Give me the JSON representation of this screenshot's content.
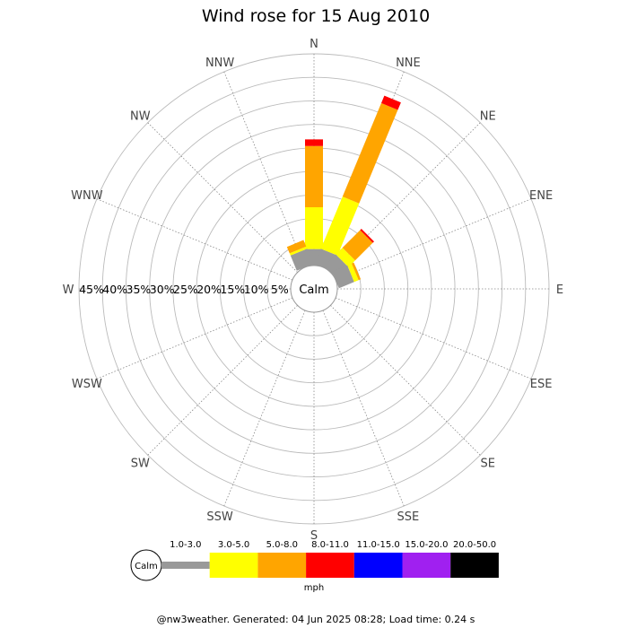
{
  "chart_data": {
    "type": "wind-rose",
    "title": "Wind rose for 15 Aug 2010",
    "directions": [
      "N",
      "NNE",
      "NE",
      "ENE",
      "E",
      "ESE",
      "SE",
      "SSE",
      "S",
      "SSW",
      "SW",
      "WSW",
      "W",
      "WNW",
      "NW",
      "NNW"
    ],
    "ring_labels": [
      "5%",
      "10%",
      "15%",
      "20%",
      "25%",
      "30%",
      "35%",
      "40%",
      "45%"
    ],
    "ring_values": [
      5,
      10,
      15,
      20,
      25,
      30,
      35,
      40,
      45
    ],
    "rmax": 45,
    "calm_label": "Calm",
    "speed_bins": [
      {
        "label": "1.0-3.0",
        "color": "#999999"
      },
      {
        "label": "3.0-5.0",
        "color": "#ffff00"
      },
      {
        "label": "5.0-8.0",
        "color": "#ffa500"
      },
      {
        "label": "8.0-11.0",
        "color": "#ff0000"
      },
      {
        "label": "11.0-15.0",
        "color": "#0000ff"
      },
      {
        "label": "15.0-20.0",
        "color": "#a020f0"
      },
      {
        "label": "20.0-50.0",
        "color": "#000000"
      }
    ],
    "unit_label": "mph",
    "series": [
      {
        "direction": "N",
        "cumulative": [
          3.5,
          12.4,
          25.4,
          26.8
        ]
      },
      {
        "direction": "NNE",
        "cumulative": [
          3.5,
          15.5,
          37.0,
          38.7
        ]
      },
      {
        "direction": "NE",
        "cumulative": [
          3.5,
          5.5,
          10.8,
          11.2
        ]
      },
      {
        "direction": "ENE",
        "cumulative": [
          3.5,
          4.5,
          5.0
        ]
      },
      {
        "direction": "NNW",
        "cumulative": [
          3.5,
          4.0,
          5.5
        ]
      }
    ]
  },
  "footer": "@nw3weather. Generated: 04 Jun 2025 08:28; Load time: 0.24 s"
}
